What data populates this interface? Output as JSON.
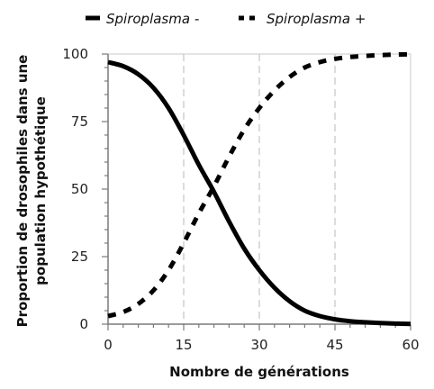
{
  "chart_data": {
    "type": "line",
    "xlabel": "Nombre de générations",
    "ylabel": [
      "Proportion de drosophiles dans une",
      "population hypothétique"
    ],
    "xlim": [
      0,
      60
    ],
    "ylim": [
      0,
      100
    ],
    "xticks": [
      0,
      15,
      30,
      45,
      60
    ],
    "yticks": [
      0,
      25,
      50,
      75,
      100
    ],
    "grid": "vertical dashed",
    "legend": "top",
    "series": [
      {
        "name": "Spiroplasma -",
        "style": "solid",
        "x": [
          0,
          3,
          6,
          9,
          12,
          15,
          18,
          21,
          24,
          27,
          30,
          33,
          36,
          39,
          42,
          45,
          48,
          51,
          54,
          57,
          60
        ],
        "y": [
          97,
          95.5,
          92.5,
          87.5,
          80,
          70,
          59,
          49,
          38,
          28,
          20,
          13.5,
          8.5,
          5,
          3,
          1.8,
          1.1,
          0.7,
          0.4,
          0.2,
          0.1
        ]
      },
      {
        "name": "Spiroplasma +",
        "style": "dashed",
        "x": [
          0,
          3,
          6,
          9,
          12,
          15,
          18,
          21,
          24,
          27,
          30,
          33,
          36,
          39,
          42,
          45,
          48,
          51,
          54,
          57,
          60
        ],
        "y": [
          3,
          4.5,
          7.5,
          12.5,
          20,
          30,
          41,
          51,
          62,
          72,
          80,
          86.5,
          91.5,
          95,
          97,
          98.2,
          98.9,
          99.3,
          99.6,
          99.8,
          99.9
        ]
      }
    ]
  }
}
